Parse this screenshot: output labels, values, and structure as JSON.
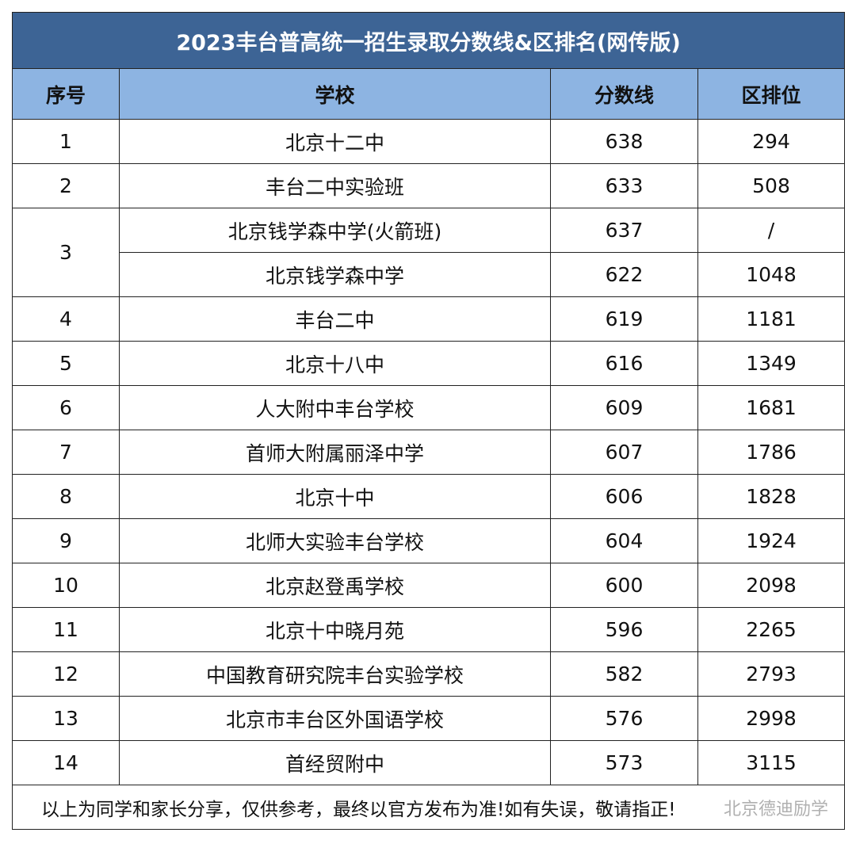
{
  "table": {
    "title": "2023丰台普高统一招生录取分数线&区排名(网传版)",
    "headers": [
      "序号",
      "学校",
      "分数线",
      "区排位"
    ],
    "rows": [
      {
        "no": 1,
        "entries": [
          {
            "school": "北京十二中",
            "score": 638,
            "rank": 294
          }
        ]
      },
      {
        "no": 2,
        "entries": [
          {
            "school": "丰台二中实验班",
            "score": 633,
            "rank": 508
          }
        ]
      },
      {
        "no": 3,
        "entries": [
          {
            "school": "北京钱学森中学(火箭班)",
            "score": 637,
            "rank": "/"
          },
          {
            "school": "北京钱学森中学",
            "score": 622,
            "rank": 1048
          }
        ]
      },
      {
        "no": 4,
        "entries": [
          {
            "school": "丰台二中",
            "score": 619,
            "rank": 1181
          }
        ]
      },
      {
        "no": 5,
        "entries": [
          {
            "school": "北京十八中",
            "score": 616,
            "rank": 1349
          }
        ]
      },
      {
        "no": 6,
        "entries": [
          {
            "school": "人大附中丰台学校",
            "score": 609,
            "rank": 1681
          }
        ]
      },
      {
        "no": 7,
        "entries": [
          {
            "school": "首师大附属丽泽中学",
            "score": 607,
            "rank": 1786
          }
        ]
      },
      {
        "no": 8,
        "entries": [
          {
            "school": "北京十中",
            "score": 606,
            "rank": 1828
          }
        ]
      },
      {
        "no": 9,
        "entries": [
          {
            "school": "北师大实验丰台学校",
            "score": 604,
            "rank": 1924
          }
        ]
      },
      {
        "no": 10,
        "entries": [
          {
            "school": "北京赵登禹学校",
            "score": 600,
            "rank": 2098
          }
        ]
      },
      {
        "no": 11,
        "entries": [
          {
            "school": "北京十中晓月苑",
            "score": 596,
            "rank": 2265
          }
        ]
      },
      {
        "no": 12,
        "entries": [
          {
            "school": "中国教育研究院丰台实验学校",
            "score": 582,
            "rank": 2793
          }
        ]
      },
      {
        "no": 13,
        "entries": [
          {
            "school": "北京市丰台区外国语学校",
            "score": 576,
            "rank": 2998
          }
        ]
      },
      {
        "no": 14,
        "entries": [
          {
            "school": "首经贸附中",
            "score": 573,
            "rank": 3115
          }
        ]
      }
    ],
    "footer": "以上为同学和家长分享，仅供参考，最终以官方发布为准!如有失误，敬请指正!",
    "watermark": "北京德迪励学"
  }
}
